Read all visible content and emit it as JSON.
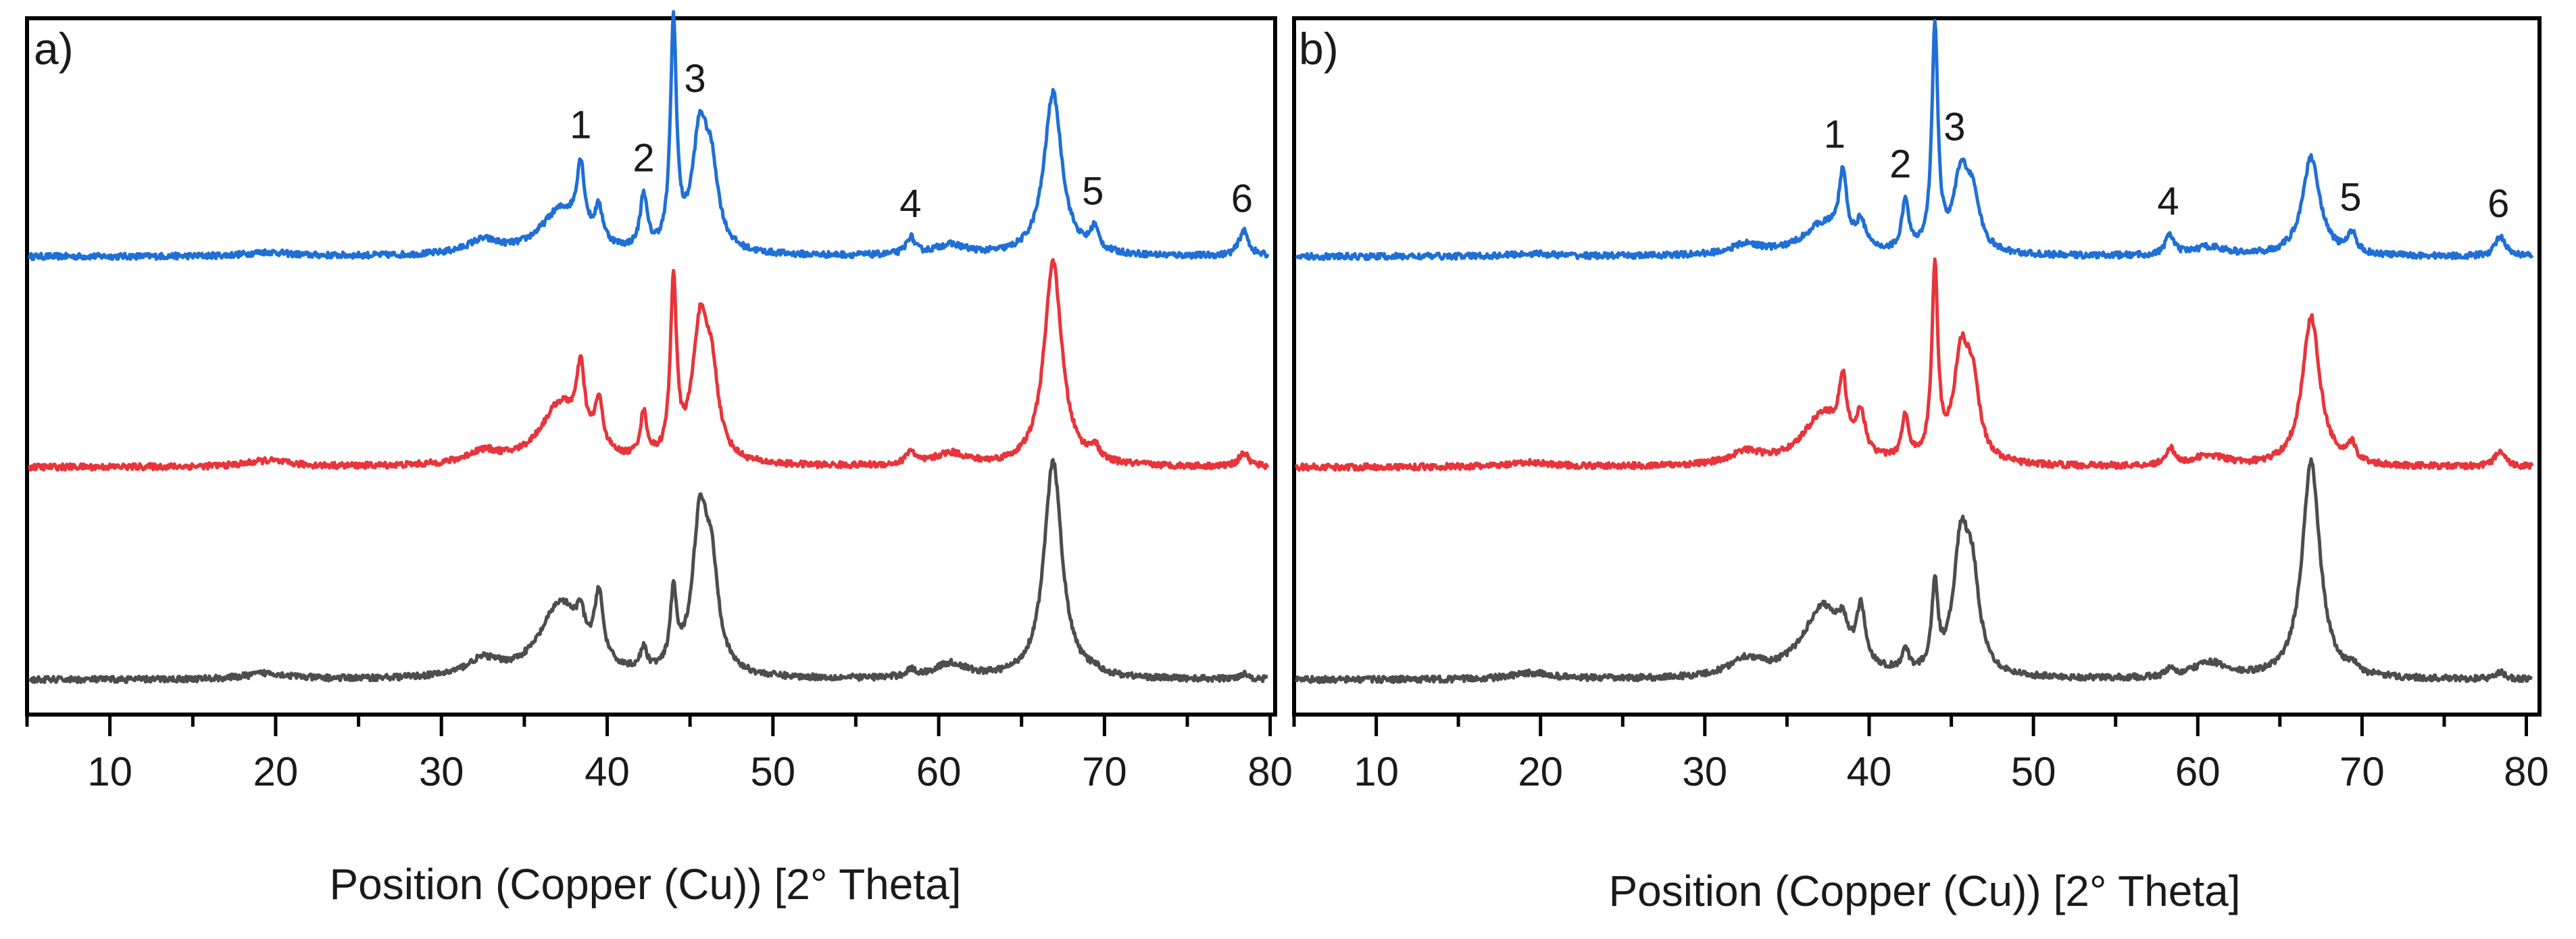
{
  "chart_data": [
    {
      "type": "line",
      "panel": "a)",
      "xlabel": "Position (Copper (Cu)) [2° Theta]",
      "ylabel": "",
      "xlim": [
        5,
        80.3
      ],
      "ylim": [
        0,
        100
      ],
      "xticks": [
        10,
        20,
        30,
        40,
        50,
        60,
        70,
        80
      ],
      "grid": false,
      "legend": "none",
      "peak_labels": [
        {
          "text": "1",
          "x": 38.4
        },
        {
          "text": "2",
          "x": 42.2
        },
        {
          "text": "3",
          "x": 45.3
        },
        {
          "text": "4",
          "x": 58.3
        },
        {
          "text": "5",
          "x": 69.3
        },
        {
          "text": "6",
          "x": 78.3
        }
      ],
      "series": [
        {
          "name": "top",
          "color": "#1f6fd6",
          "offset": 66.2,
          "amp": 1.0,
          "peaks": [
            [
              19.5,
              0.6,
              1.5
            ],
            [
              32.5,
              2.0,
              1.2
            ],
            [
              37.2,
              6.5,
              1.5
            ],
            [
              38.4,
              10.0,
              0.28
            ],
            [
              39.5,
              5.0,
              0.3
            ],
            [
              42.2,
              8.0,
              0.25
            ],
            [
              44.0,
              33.0,
              0.22
            ],
            [
              45.6,
              17.0,
              0.55
            ],
            [
              46.3,
              10.0,
              0.5
            ],
            [
              58.3,
              2.5,
              0.3
            ],
            [
              60.7,
              1.5,
              1.2
            ],
            [
              66.9,
              24.0,
              0.65
            ],
            [
              69.4,
              3.3,
              0.3
            ],
            [
              78.4,
              3.7,
              0.35
            ]
          ]
        },
        {
          "name": "middle",
          "color": "#e8343a",
          "offset": 35.2,
          "amp": 1.0,
          "peaks": [
            [
              19.5,
              0.9,
              1.5
            ],
            [
              32.5,
              1.8,
              1.2
            ],
            [
              37.2,
              9.0,
              1.5
            ],
            [
              38.4,
              10.0,
              0.28
            ],
            [
              39.5,
              7.0,
              0.3
            ],
            [
              42.2,
              6.5,
              0.25
            ],
            [
              44.0,
              26.0,
              0.22
            ],
            [
              45.6,
              19.0,
              0.55
            ],
            [
              46.3,
              11.0,
              0.5
            ],
            [
              58.3,
              2.0,
              0.3
            ],
            [
              60.7,
              1.8,
              1.2
            ],
            [
              66.9,
              30.0,
              0.65
            ],
            [
              69.4,
              2.0,
              0.3
            ],
            [
              78.4,
              2.0,
              0.35
            ]
          ]
        },
        {
          "name": "bottom",
          "color": "#4d4d4d",
          "offset": 3.9,
          "amp": 1.0,
          "peaks": [
            [
              19.5,
              0.9,
              1.5
            ],
            [
              32.5,
              2.4,
              1.2
            ],
            [
              37.2,
              11.0,
              1.5
            ],
            [
              38.4,
              4.0,
              0.28
            ],
            [
              39.5,
              10.0,
              0.3
            ],
            [
              42.2,
              3.0,
              0.25
            ],
            [
              44.0,
              11.0,
              0.22
            ],
            [
              45.6,
              22.0,
              0.55
            ],
            [
              46.3,
              13.0,
              0.5
            ],
            [
              58.3,
              1.0,
              0.3
            ],
            [
              60.7,
              2.1,
              1.2
            ],
            [
              66.9,
              32.0,
              0.65
            ],
            [
              69.4,
              0.6,
              0.3
            ],
            [
              78.4,
              0.8,
              0.35
            ]
          ]
        }
      ]
    },
    {
      "type": "line",
      "panel": "b)",
      "xlabel": "Position (Copper (Cu)) [2° Theta]",
      "ylabel": "",
      "xlim": [
        5,
        80.8
      ],
      "ylim": [
        0,
        100
      ],
      "xticks": [
        10,
        20,
        30,
        40,
        50,
        60,
        70,
        80
      ],
      "grid": false,
      "legend": "none",
      "peak_labels": [
        {
          "text": "1",
          "x": 37.9
        },
        {
          "text": "2",
          "x": 41.9
        },
        {
          "text": "3",
          "x": 45.2
        },
        {
          "text": "4",
          "x": 58.2
        },
        {
          "text": "5",
          "x": 69.3
        },
        {
          "text": "6",
          "x": 78.3
        }
      ],
      "series": [
        {
          "name": "top",
          "color": "#1f6fd6",
          "offset": 66.2,
          "amp": 1.0,
          "peaks": [
            [
              19.5,
              0.4,
              1.5
            ],
            [
              32.5,
              1.5,
              1.2
            ],
            [
              37.2,
              4.5,
              1.5
            ],
            [
              38.4,
              10.0,
              0.28
            ],
            [
              39.5,
              4.0,
              0.3
            ],
            [
              42.2,
              7.5,
              0.25
            ],
            [
              44.0,
              33.0,
              0.22
            ],
            [
              45.6,
              11.0,
              0.55
            ],
            [
              46.3,
              7.0,
              0.5
            ],
            [
              58.3,
              3.0,
              0.3
            ],
            [
              60.7,
              1.3,
              1.2
            ],
            [
              66.9,
              14.5,
              0.65
            ],
            [
              69.4,
              3.0,
              0.3
            ],
            [
              78.4,
              3.0,
              0.35
            ]
          ]
        },
        {
          "name": "middle",
          "color": "#e8343a",
          "offset": 35.2,
          "amp": 1.0,
          "peaks": [
            [
              19.5,
              0.6,
              1.5
            ],
            [
              32.5,
              1.8,
              1.2
            ],
            [
              37.2,
              7.5,
              1.5
            ],
            [
              38.4,
              9.0,
              0.28
            ],
            [
              39.5,
              6.0,
              0.3
            ],
            [
              42.2,
              6.5,
              0.25
            ],
            [
              44.0,
              28.0,
              0.22
            ],
            [
              45.6,
              15.0,
              0.55
            ],
            [
              46.3,
              10.0,
              0.5
            ],
            [
              58.3,
              2.5,
              0.3
            ],
            [
              60.7,
              1.5,
              1.2
            ],
            [
              66.9,
              22.0,
              0.65
            ],
            [
              69.4,
              2.5,
              0.3
            ],
            [
              78.4,
              2.5,
              0.35
            ]
          ]
        },
        {
          "name": "bottom",
          "color": "#4d4d4d",
          "offset": 3.9,
          "amp": 1.0,
          "peaks": [
            [
              19.5,
              0.9,
              1.5
            ],
            [
              32.5,
              2.5,
              1.2
            ],
            [
              37.2,
              10.5,
              1.5
            ],
            [
              38.4,
              3.5,
              0.28
            ],
            [
              39.5,
              8.0,
              0.3
            ],
            [
              42.2,
              3.0,
              0.25
            ],
            [
              44.0,
              12.0,
              0.22
            ],
            [
              45.6,
              19.0,
              0.55
            ],
            [
              46.3,
              12.0,
              0.5
            ],
            [
              58.3,
              1.0,
              0.3
            ],
            [
              60.7,
              2.3,
              1.2
            ],
            [
              66.9,
              32.0,
              0.65
            ],
            [
              69.4,
              1.0,
              0.3
            ],
            [
              78.4,
              1.0,
              0.35
            ]
          ]
        }
      ]
    }
  ]
}
